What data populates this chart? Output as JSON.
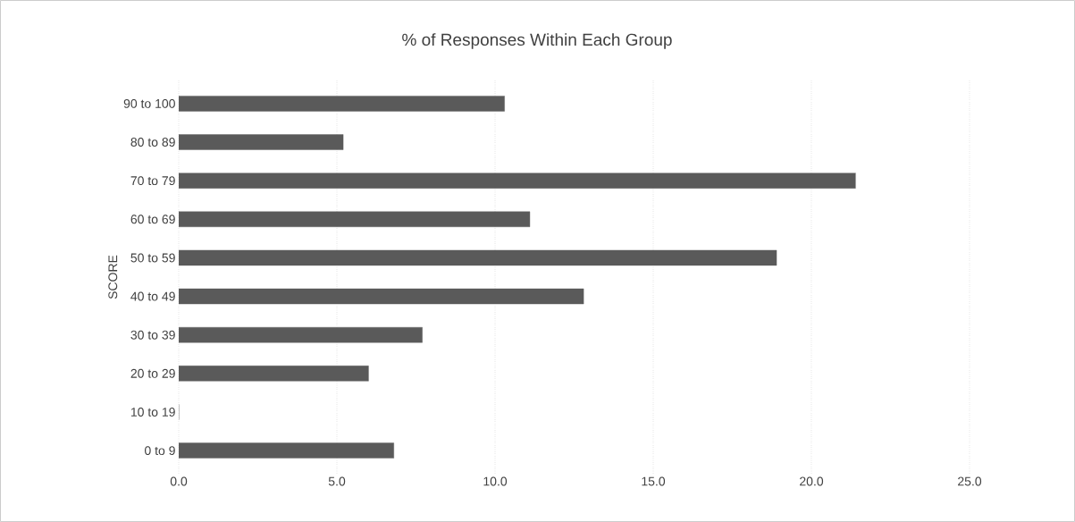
{
  "chart_data": {
    "type": "bar",
    "orientation": "horizontal",
    "title": "% of Responses Within Each Group",
    "ylabel": "SCORE",
    "categories": [
      "90 to 100",
      "80 to 89",
      "70 to 79",
      "60 to 69",
      "50 to 59",
      "40 to 49",
      "30 to 39",
      "20 to 29",
      "10 to 19",
      "0 to 9"
    ],
    "values": [
      10.3,
      5.2,
      21.4,
      11.1,
      18.9,
      12.8,
      7.7,
      6.0,
      0,
      6.8
    ],
    "color": "#5a5a5a",
    "xlim": [
      0,
      25
    ],
    "xticks": [
      {
        "value": 0,
        "label": "0.0"
      },
      {
        "value": 5,
        "label": "5.0"
      },
      {
        "value": 10,
        "label": "10.0"
      },
      {
        "value": 15,
        "label": "15.0"
      },
      {
        "value": 20,
        "label": "20.0"
      },
      {
        "value": 25,
        "label": "25.0"
      }
    ],
    "grid": "x"
  }
}
